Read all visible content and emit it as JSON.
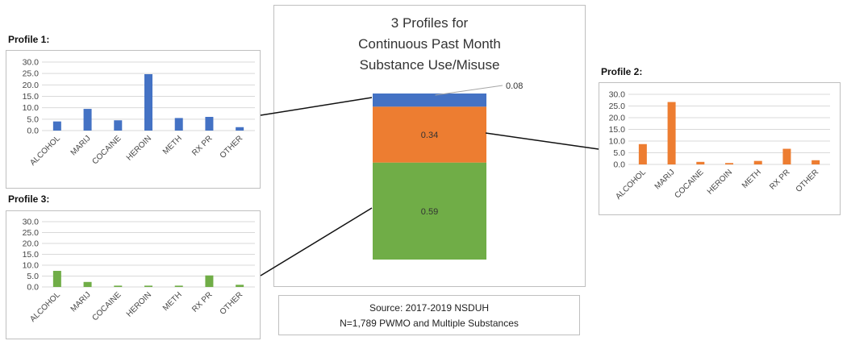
{
  "central": {
    "title_lines": [
      "3 Profiles for",
      "Continuous Past Month",
      "Substance Use/Misuse"
    ]
  },
  "source": {
    "line1": "Source: 2017-2019 NSDUH",
    "line2": "N=1,789 PWMO and Multiple Substances"
  },
  "profiles": {
    "p1": {
      "label": "Profile 1:"
    },
    "p2": {
      "label": "Profile 2:"
    },
    "p3": {
      "label": "Profile 3:"
    }
  },
  "chart_data": [
    {
      "id": "profile-1",
      "type": "bar",
      "title": "Profile 1:",
      "categories": [
        "ALCOHOL",
        "MARIJ",
        "COCAINE",
        "HEROIN",
        "METH",
        "RX PR",
        "OTHER"
      ],
      "values": [
        4.0,
        9.5,
        4.5,
        24.7,
        5.5,
        6.0,
        1.5
      ],
      "color": "#4472c4",
      "ylim": [
        0,
        30
      ],
      "yticks": [
        "0.0",
        "5.0",
        "10.0",
        "15.0",
        "20.0",
        "25.0",
        "30.0"
      ],
      "grid": true
    },
    {
      "id": "profile-2",
      "type": "bar",
      "title": "Profile 2:",
      "categories": [
        "ALCOHOL",
        "MARIJ",
        "COCAINE",
        "HEROIN",
        "METH",
        "RX PR",
        "OTHER"
      ],
      "values": [
        8.7,
        26.7,
        1.1,
        0.6,
        1.5,
        6.7,
        1.8
      ],
      "color": "#ed7d31",
      "ylim": [
        0,
        30
      ],
      "yticks": [
        "0.0",
        "5.0",
        "10.0",
        "15.0",
        "20.0",
        "25.0",
        "30.0"
      ],
      "grid": true
    },
    {
      "id": "profile-3",
      "type": "bar",
      "title": "Profile 3:",
      "categories": [
        "ALCOHOL",
        "MARIJ",
        "COCAINE",
        "HEROIN",
        "METH",
        "RX PR",
        "OTHER"
      ],
      "values": [
        7.4,
        2.3,
        0.6,
        0.6,
        0.6,
        5.3,
        1.0
      ],
      "color": "#70ad47",
      "ylim": [
        0,
        30
      ],
      "yticks": [
        "0.0",
        "5.0",
        "10.0",
        "15.0",
        "20.0",
        "25.0",
        "30.0"
      ],
      "grid": true
    },
    {
      "id": "profiles-stacked",
      "type": "bar",
      "stacked": true,
      "title": "3 Profiles for Continuous Past Month Substance Use/Misuse",
      "series": [
        {
          "value": 0.59,
          "label": "0.59",
          "color": "#70ad47"
        },
        {
          "value": 0.34,
          "label": "0.34",
          "color": "#ed7d31"
        },
        {
          "value": 0.08,
          "label": "0.08",
          "color": "#4472c4"
        }
      ]
    }
  ]
}
